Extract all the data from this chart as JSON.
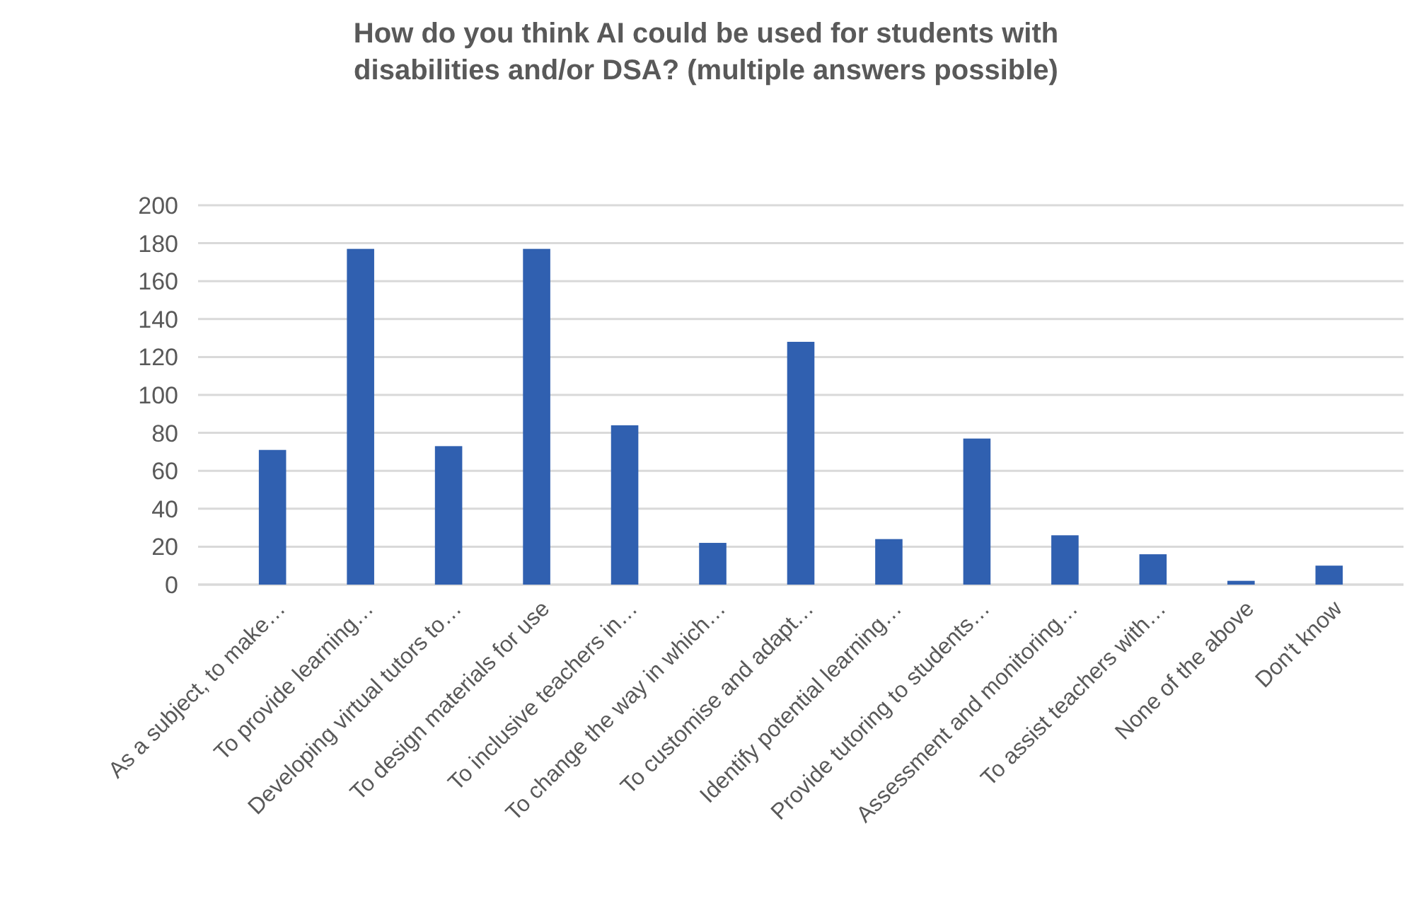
{
  "chart_data": {
    "type": "bar",
    "title": "How do you think AI could be used for students with disabilities and/or DSA? (multiple answers possible)",
    "categories": [
      "As a subject, to make…",
      "To provide learning…",
      "Developing virtual tutors to…",
      "To design materials for use",
      "To inclusive teachers in…",
      "To change the way in which…",
      "To customise and adapt…",
      "Identify potential learning…",
      "Provide tutoring to students…",
      "Assessment and monitoring…",
      "To assist teachers with…",
      "None of the above",
      "Don't know"
    ],
    "values": [
      71,
      177,
      73,
      177,
      84,
      22,
      128,
      24,
      77,
      26,
      16,
      2,
      10
    ],
    "color": "#3060b0",
    "ylim": [
      0,
      200
    ],
    "yticks": [
      0,
      20,
      40,
      60,
      80,
      100,
      120,
      140,
      160,
      180,
      200
    ],
    "grid": "y"
  }
}
